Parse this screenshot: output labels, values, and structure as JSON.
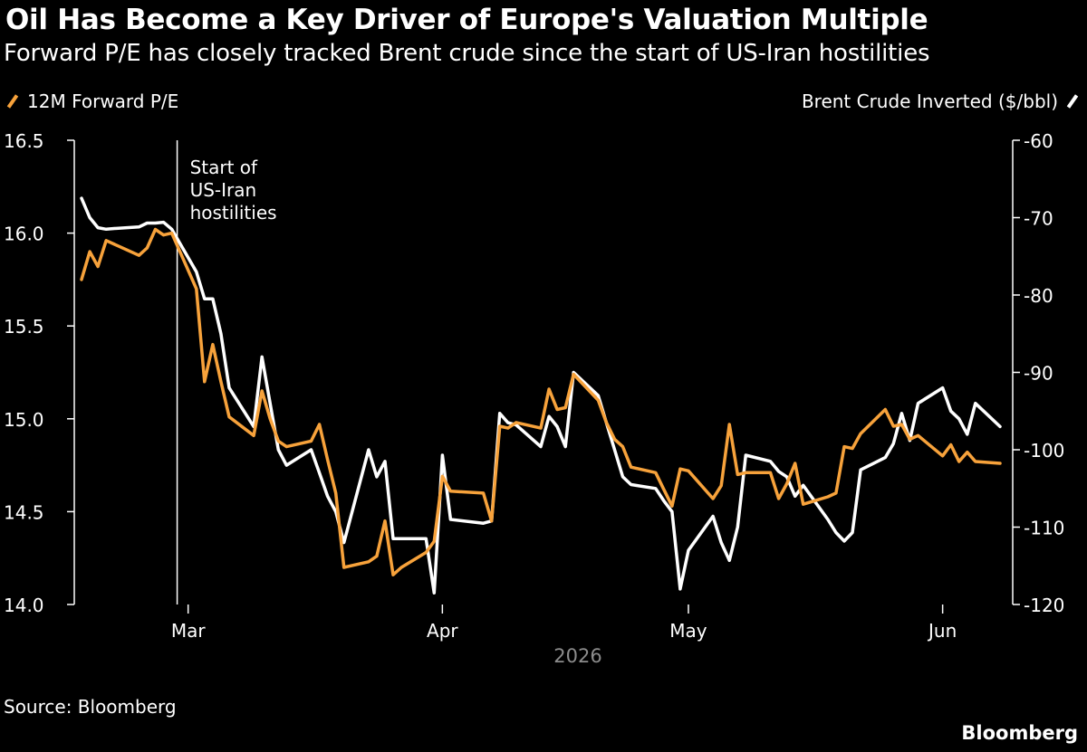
{
  "title": "Oil Has Become a Key Driver of Europe's Valuation Multiple",
  "subtitle": "Forward P/E has closely tracked Brent crude since the start of US-Iran hostilities",
  "source": "Source: Bloomberg",
  "brand": "Bloomberg",
  "colors": {
    "pe": "#f7a23b",
    "brent": "#ffffff",
    "background": "#000000"
  },
  "chart_data": {
    "type": "line",
    "legend": {
      "left": "12M Forward P/E",
      "right": "Brent Crude Inverted ($/bbl)"
    },
    "xlabel": "2026",
    "x_ticks": [
      {
        "date": "2026-03-01",
        "label": "Mar"
      },
      {
        "date": "2026-04-01",
        "label": "Apr"
      },
      {
        "date": "2026-05-01",
        "label": "May"
      },
      {
        "date": "2026-06-01",
        "label": "Jun"
      }
    ],
    "xlim": [
      "2026-02-16",
      "2026-06-08"
    ],
    "y_left": {
      "ylim": [
        14.0,
        16.5
      ],
      "ticks": [
        "14.0",
        "14.5",
        "15.0",
        "15.5",
        "16.0",
        "16.5"
      ]
    },
    "y_right": {
      "ylim": [
        -120,
        -60
      ],
      "ticks": [
        "-120",
        "-110",
        "-100",
        "-90",
        "-80",
        "-70",
        "-60"
      ]
    },
    "annotation": {
      "date": "2026-02-27",
      "lines": [
        "Start of",
        "US-Iran",
        "hostilities"
      ]
    },
    "series": [
      {
        "name": "12M Forward P/E",
        "axis": "left",
        "points": [
          [
            "2026-02-16",
            15.75
          ],
          [
            "2026-02-17",
            15.9
          ],
          [
            "2026-02-18",
            15.82
          ],
          [
            "2026-02-19",
            15.96
          ],
          [
            "2026-02-20",
            15.94
          ],
          [
            "2026-02-23",
            15.88
          ],
          [
            "2026-02-24",
            15.92
          ],
          [
            "2026-02-25",
            16.02
          ],
          [
            "2026-02-26",
            15.99
          ],
          [
            "2026-02-27",
            16.0
          ],
          [
            "2026-03-02",
            15.7
          ],
          [
            "2026-03-03",
            15.2
          ],
          [
            "2026-03-04",
            15.4
          ],
          [
            "2026-03-05",
            15.2
          ],
          [
            "2026-03-06",
            15.01
          ],
          [
            "2026-03-09",
            14.91
          ],
          [
            "2026-03-10",
            15.15
          ],
          [
            "2026-03-11",
            15.0
          ],
          [
            "2026-03-12",
            14.88
          ],
          [
            "2026-03-13",
            14.85
          ],
          [
            "2026-03-16",
            14.88
          ],
          [
            "2026-03-17",
            14.97
          ],
          [
            "2026-03-18",
            14.78
          ],
          [
            "2026-03-19",
            14.6
          ],
          [
            "2026-03-20",
            14.2
          ],
          [
            "2026-03-23",
            14.23
          ],
          [
            "2026-03-24",
            14.26
          ],
          [
            "2026-03-25",
            14.45
          ],
          [
            "2026-03-26",
            14.16
          ],
          [
            "2026-03-27",
            14.2
          ],
          [
            "2026-03-30",
            14.28
          ],
          [
            "2026-03-31",
            14.34
          ],
          [
            "2026-04-01",
            14.69
          ],
          [
            "2026-04-02",
            14.61
          ],
          [
            "2026-04-06",
            14.6
          ],
          [
            "2026-04-07",
            14.45
          ],
          [
            "2026-04-08",
            14.96
          ],
          [
            "2026-04-09",
            14.95
          ],
          [
            "2026-04-10",
            14.98
          ],
          [
            "2026-04-13",
            14.95
          ],
          [
            "2026-04-14",
            15.16
          ],
          [
            "2026-04-15",
            15.05
          ],
          [
            "2026-04-16",
            15.06
          ],
          [
            "2026-04-17",
            15.24
          ],
          [
            "2026-04-20",
            15.1
          ],
          [
            "2026-04-21",
            14.98
          ],
          [
            "2026-04-22",
            14.89
          ],
          [
            "2026-04-23",
            14.85
          ],
          [
            "2026-04-24",
            14.74
          ],
          [
            "2026-04-27",
            14.71
          ],
          [
            "2026-04-28",
            14.62
          ],
          [
            "2026-04-29",
            14.53
          ],
          [
            "2026-04-30",
            14.73
          ],
          [
            "2026-05-01",
            14.72
          ],
          [
            "2026-05-04",
            14.57
          ],
          [
            "2026-05-05",
            14.64
          ],
          [
            "2026-05-06",
            14.97
          ],
          [
            "2026-05-07",
            14.7
          ],
          [
            "2026-05-08",
            14.71
          ],
          [
            "2026-05-11",
            14.71
          ],
          [
            "2026-05-12",
            14.57
          ],
          [
            "2026-05-13",
            14.65
          ],
          [
            "2026-05-14",
            14.76
          ],
          [
            "2026-05-15",
            14.54
          ],
          [
            "2026-05-18",
            14.58
          ],
          [
            "2026-05-19",
            14.6
          ],
          [
            "2026-05-20",
            14.85
          ],
          [
            "2026-05-21",
            14.84
          ],
          [
            "2026-05-22",
            14.92
          ],
          [
            "2026-05-25",
            15.05
          ],
          [
            "2026-05-26",
            14.96
          ],
          [
            "2026-05-27",
            14.97
          ],
          [
            "2026-05-28",
            14.89
          ],
          [
            "2026-05-29",
            14.91
          ],
          [
            "2026-06-01",
            14.8
          ],
          [
            "2026-06-02",
            14.86
          ],
          [
            "2026-06-03",
            14.77
          ],
          [
            "2026-06-04",
            14.82
          ],
          [
            "2026-06-05",
            14.77
          ],
          [
            "2026-06-08",
            14.76
          ]
        ]
      },
      {
        "name": "Brent Crude Inverted ($/bbl)",
        "axis": "right",
        "points": [
          [
            "2026-02-16",
            -67.5
          ],
          [
            "2026-02-17",
            -70.0
          ],
          [
            "2026-02-18",
            -71.3
          ],
          [
            "2026-02-19",
            -71.5
          ],
          [
            "2026-02-20",
            -71.4
          ],
          [
            "2026-02-23",
            -71.2
          ],
          [
            "2026-02-24",
            -70.7
          ],
          [
            "2026-02-25",
            -70.7
          ],
          [
            "2026-02-26",
            -70.6
          ],
          [
            "2026-02-27",
            -71.5
          ],
          [
            "2026-03-02",
            -77.0
          ],
          [
            "2026-03-03",
            -80.5
          ],
          [
            "2026-03-04",
            -80.5
          ],
          [
            "2026-03-05",
            -85.0
          ],
          [
            "2026-03-06",
            -92.0
          ],
          [
            "2026-03-09",
            -97.0
          ],
          [
            "2026-03-10",
            -88.0
          ],
          [
            "2026-03-11",
            -94.0
          ],
          [
            "2026-03-12",
            -100.0
          ],
          [
            "2026-03-13",
            -102.0
          ],
          [
            "2026-03-16",
            -100.0
          ],
          [
            "2026-03-17",
            -103.0
          ],
          [
            "2026-03-18",
            -106.0
          ],
          [
            "2026-03-19",
            -108.0
          ],
          [
            "2026-03-20",
            -112.0
          ],
          [
            "2026-03-23",
            -100.0
          ],
          [
            "2026-03-24",
            -103.5
          ],
          [
            "2026-03-25",
            -101.5
          ],
          [
            "2026-03-26",
            -111.5
          ],
          [
            "2026-03-27",
            -111.5
          ],
          [
            "2026-03-30",
            -111.5
          ],
          [
            "2026-03-31",
            -118.5
          ],
          [
            "2026-04-01",
            -100.7
          ],
          [
            "2026-04-02",
            -109.0
          ],
          [
            "2026-04-06",
            -109.5
          ],
          [
            "2026-04-07",
            -109.2
          ],
          [
            "2026-04-08",
            -95.3
          ],
          [
            "2026-04-09",
            -96.5
          ],
          [
            "2026-04-10",
            -96.8
          ],
          [
            "2026-04-13",
            -99.6
          ],
          [
            "2026-04-14",
            -95.7
          ],
          [
            "2026-04-15",
            -97.0
          ],
          [
            "2026-04-16",
            -99.6
          ],
          [
            "2026-04-17",
            -90.0
          ],
          [
            "2026-04-20",
            -93.0
          ],
          [
            "2026-04-21",
            -96.5
          ],
          [
            "2026-04-22",
            -100.0
          ],
          [
            "2026-04-23",
            -103.5
          ],
          [
            "2026-04-24",
            -104.5
          ],
          [
            "2026-04-27",
            -105.0
          ],
          [
            "2026-04-28",
            -106.6
          ],
          [
            "2026-04-29",
            -108.0
          ],
          [
            "2026-04-30",
            -118.0
          ],
          [
            "2026-05-01",
            -113.0
          ],
          [
            "2026-05-04",
            -108.6
          ],
          [
            "2026-05-05",
            -112.0
          ],
          [
            "2026-05-06",
            -114.3
          ],
          [
            "2026-05-07",
            -110.0
          ],
          [
            "2026-05-08",
            -100.7
          ],
          [
            "2026-05-11",
            -101.5
          ],
          [
            "2026-05-12",
            -102.8
          ],
          [
            "2026-05-13",
            -103.5
          ],
          [
            "2026-05-14",
            -106.0
          ],
          [
            "2026-05-15",
            -104.6
          ],
          [
            "2026-05-18",
            -109.0
          ],
          [
            "2026-05-19",
            -110.7
          ],
          [
            "2026-05-20",
            -111.8
          ],
          [
            "2026-05-21",
            -110.7
          ],
          [
            "2026-05-22",
            -102.6
          ],
          [
            "2026-05-25",
            -101.0
          ],
          [
            "2026-05-26",
            -99.2
          ],
          [
            "2026-05-27",
            -95.3
          ],
          [
            "2026-05-28",
            -98.8
          ],
          [
            "2026-05-29",
            -94.0
          ],
          [
            "2026-06-01",
            -92.0
          ],
          [
            "2026-06-02",
            -95.0
          ],
          [
            "2026-06-03",
            -96.0
          ],
          [
            "2026-06-04",
            -98.0
          ],
          [
            "2026-06-05",
            -94.0
          ],
          [
            "2026-06-08",
            -97.0
          ]
        ]
      }
    ]
  }
}
